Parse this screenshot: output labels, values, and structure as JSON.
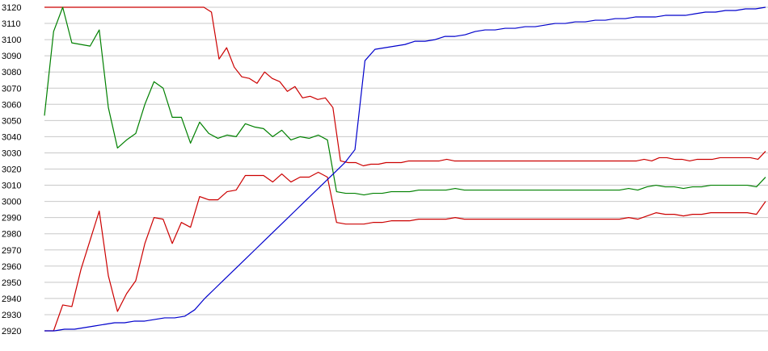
{
  "chart_data": {
    "type": "line",
    "ylim": [
      2920,
      3120
    ],
    "yticks": [
      "2920",
      "2930",
      "2940",
      "2950",
      "2960",
      "2970",
      "2980",
      "2990",
      "3000",
      "3010",
      "3020",
      "3030",
      "3040",
      "3050",
      "3060",
      "3070",
      "3080",
      "3090",
      "3100",
      "3110",
      "3120"
    ],
    "grid": true,
    "series": [
      {
        "color": "#cc0000",
        "values": [
          3120,
          3120,
          3120,
          3120,
          3120,
          3120,
          3120,
          3120,
          3120,
          3120,
          3120,
          3120,
          3120,
          3120,
          3120,
          3120,
          3120,
          3120,
          3120,
          3120,
          3120,
          3120,
          3117,
          3088,
          3095,
          3083,
          3077,
          3076,
          3073,
          3080,
          3076,
          3074,
          3068,
          3071,
          3064,
          3065,
          3063,
          3064,
          3058,
          3025,
          3024,
          3024,
          3022,
          3023,
          3023,
          3024,
          3024,
          3024,
          3025,
          3025,
          3025,
          3025,
          3025,
          3026,
          3025,
          3025,
          3025,
          3025,
          3025,
          3025,
          3025,
          3025,
          3025,
          3025,
          3025,
          3025,
          3025,
          3025,
          3025,
          3025,
          3025,
          3025,
          3025,
          3025,
          3025,
          3025,
          3025,
          3025,
          3025,
          3026,
          3025,
          3027,
          3027,
          3026,
          3026,
          3025,
          3026,
          3026,
          3026,
          3027,
          3027,
          3027,
          3027,
          3027,
          3026,
          3031
        ]
      },
      {
        "color": "#008000",
        "values": [
          3053,
          3105,
          3120,
          3098,
          3097,
          3096,
          3106,
          3058,
          3033,
          3038,
          3042,
          3060,
          3074,
          3070,
          3052,
          3052,
          3036,
          3049,
          3042,
          3039,
          3041,
          3040,
          3048,
          3046,
          3045,
          3040,
          3044,
          3038,
          3040,
          3039,
          3041,
          3038,
          3006,
          3005,
          3005,
          3004,
          3005,
          3005,
          3006,
          3006,
          3006,
          3007,
          3007,
          3007,
          3007,
          3008,
          3007,
          3007,
          3007,
          3007,
          3007,
          3007,
          3007,
          3007,
          3007,
          3007,
          3007,
          3007,
          3007,
          3007,
          3007,
          3007,
          3007,
          3007,
          3008,
          3007,
          3009,
          3010,
          3009,
          3009,
          3008,
          3009,
          3009,
          3010,
          3010,
          3010,
          3010,
          3010,
          3009,
          3015
        ]
      },
      {
        "color": "#cc0000",
        "values": [
          2920,
          2920,
          2936,
          2935,
          2958,
          2976,
          2994,
          2954,
          2932,
          2943,
          2951,
          2974,
          2990,
          2989,
          2974,
          2987,
          2984,
          3003,
          3001,
          3001,
          3006,
          3007,
          3016,
          3016,
          3016,
          3012,
          3017,
          3012,
          3015,
          3015,
          3018,
          3015,
          2987,
          2986,
          2986,
          2986,
          2987,
          2987,
          2988,
          2988,
          2988,
          2989,
          2989,
          2989,
          2989,
          2990,
          2989,
          2989,
          2989,
          2989,
          2989,
          2989,
          2989,
          2989,
          2989,
          2989,
          2989,
          2989,
          2989,
          2989,
          2989,
          2989,
          2989,
          2989,
          2990,
          2989,
          2991,
          2993,
          2992,
          2992,
          2991,
          2992,
          2992,
          2993,
          2993,
          2993,
          2993,
          2993,
          2992,
          3000
        ]
      },
      {
        "color": "#0000cc",
        "values": [
          2920,
          2920,
          2921,
          2921,
          2922,
          2923,
          2924,
          2925,
          2925,
          2926,
          2926,
          2927,
          2928,
          2928,
          2929,
          2933,
          2940,
          2946,
          2952,
          2958,
          2964,
          2970,
          2976,
          2982,
          2988,
          2994,
          3000,
          3006,
          3012,
          3018,
          3024,
          3032,
          3087,
          3094,
          3095,
          3096,
          3097,
          3099,
          3099,
          3100,
          3102,
          3102,
          3103,
          3105,
          3106,
          3106,
          3107,
          3107,
          3108,
          3108,
          3109,
          3110,
          3110,
          3111,
          3111,
          3112,
          3112,
          3113,
          3113,
          3114,
          3114,
          3114,
          3115,
          3115,
          3115,
          3116,
          3117,
          3117,
          3118,
          3118,
          3119,
          3119,
          3120
        ]
      }
    ]
  }
}
